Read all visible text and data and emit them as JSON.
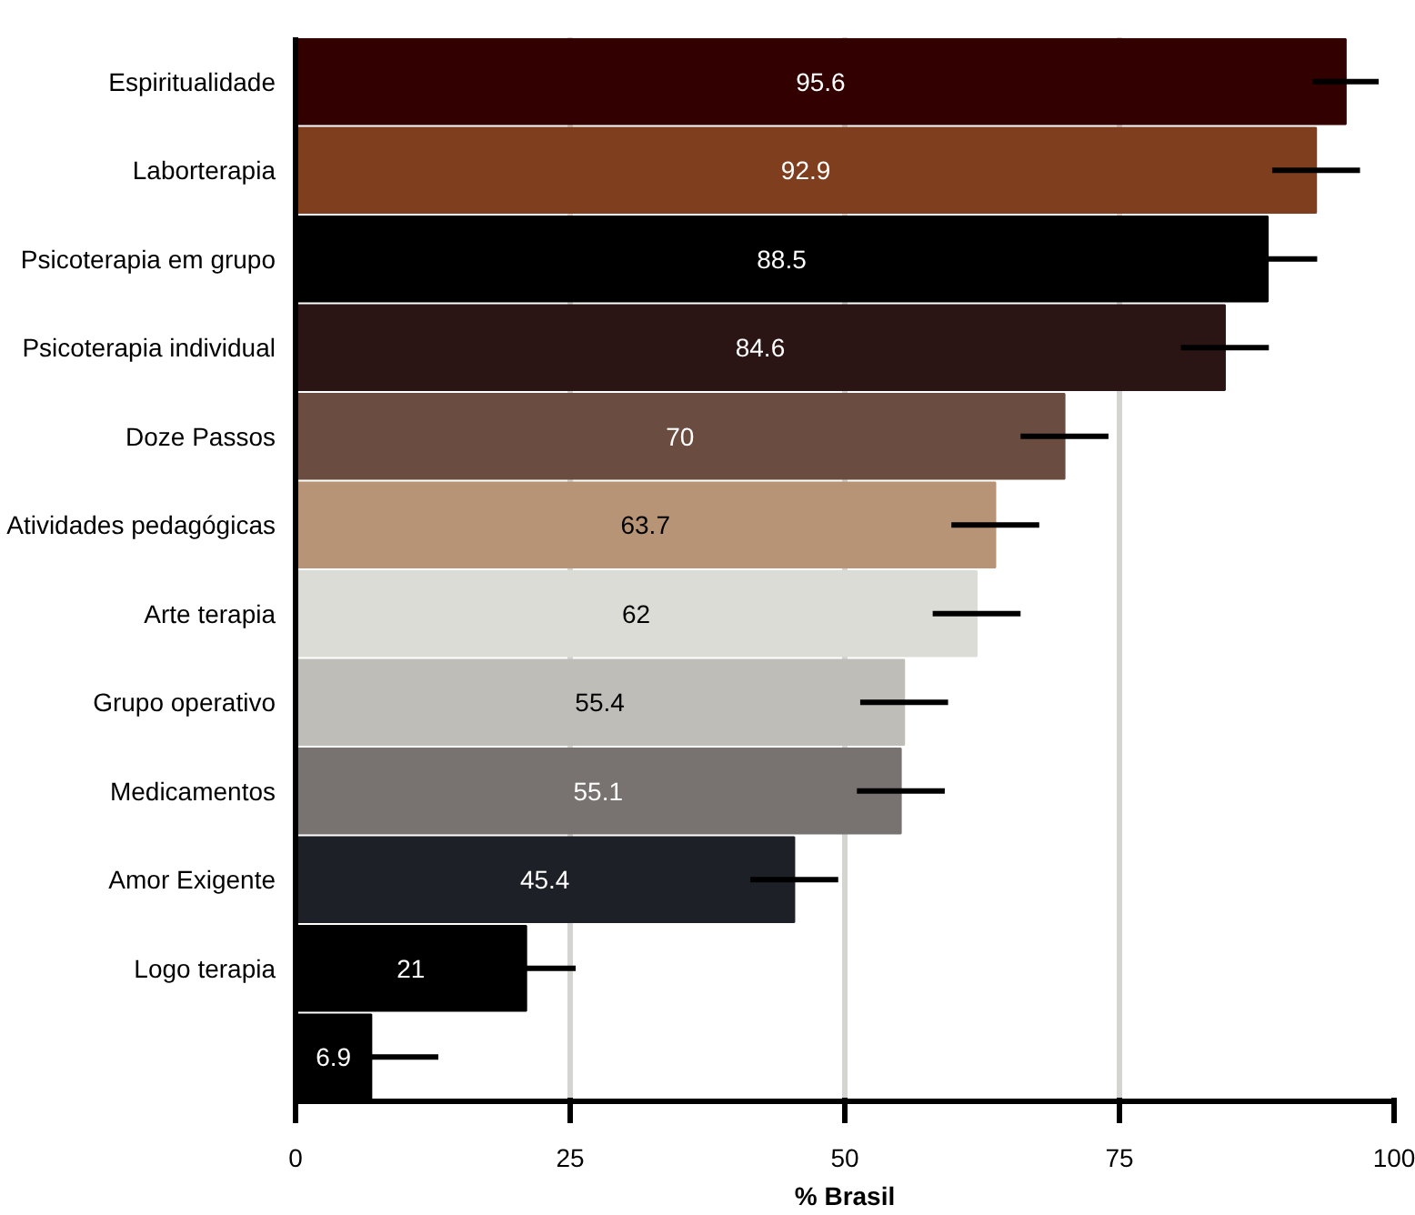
{
  "chart_data": {
    "type": "bar",
    "orientation": "horizontal",
    "xlabel": "% Brasil",
    "categories": [
      "Espiritualidade",
      "Laborterapia",
      "Psicoterapia em grupo",
      "Psicoterapia individual",
      "Doze Passos",
      "Atividades pedagógicas",
      "Arte terapia",
      "Grupo operativo",
      "Medicamentos",
      "Amor Exigente",
      "Logo terapia",
      null
    ],
    "values": [
      95.6,
      92.9,
      88.5,
      84.6,
      70,
      63.7,
      62,
      55.4,
      55.1,
      45.4,
      21,
      6.9
    ],
    "colors": [
      "#330000",
      "#7f3f1f",
      "#000000",
      "#2b1414",
      "#6b4c40",
      "#b89476",
      "#dcdcd6",
      "#bfbdb7",
      "#787270",
      "#1e2028",
      "#000000",
      "#000000"
    ],
    "errors": [
      3,
      4,
      4.5,
      4,
      4,
      4,
      4,
      4,
      4,
      4,
      4.5,
      [
        6.9,
        13
      ]
    ],
    "data_labels": true,
    "xlim": [
      0,
      100
    ],
    "xticks": [
      0,
      25,
      50,
      75,
      100
    ],
    "grid": "x"
  }
}
